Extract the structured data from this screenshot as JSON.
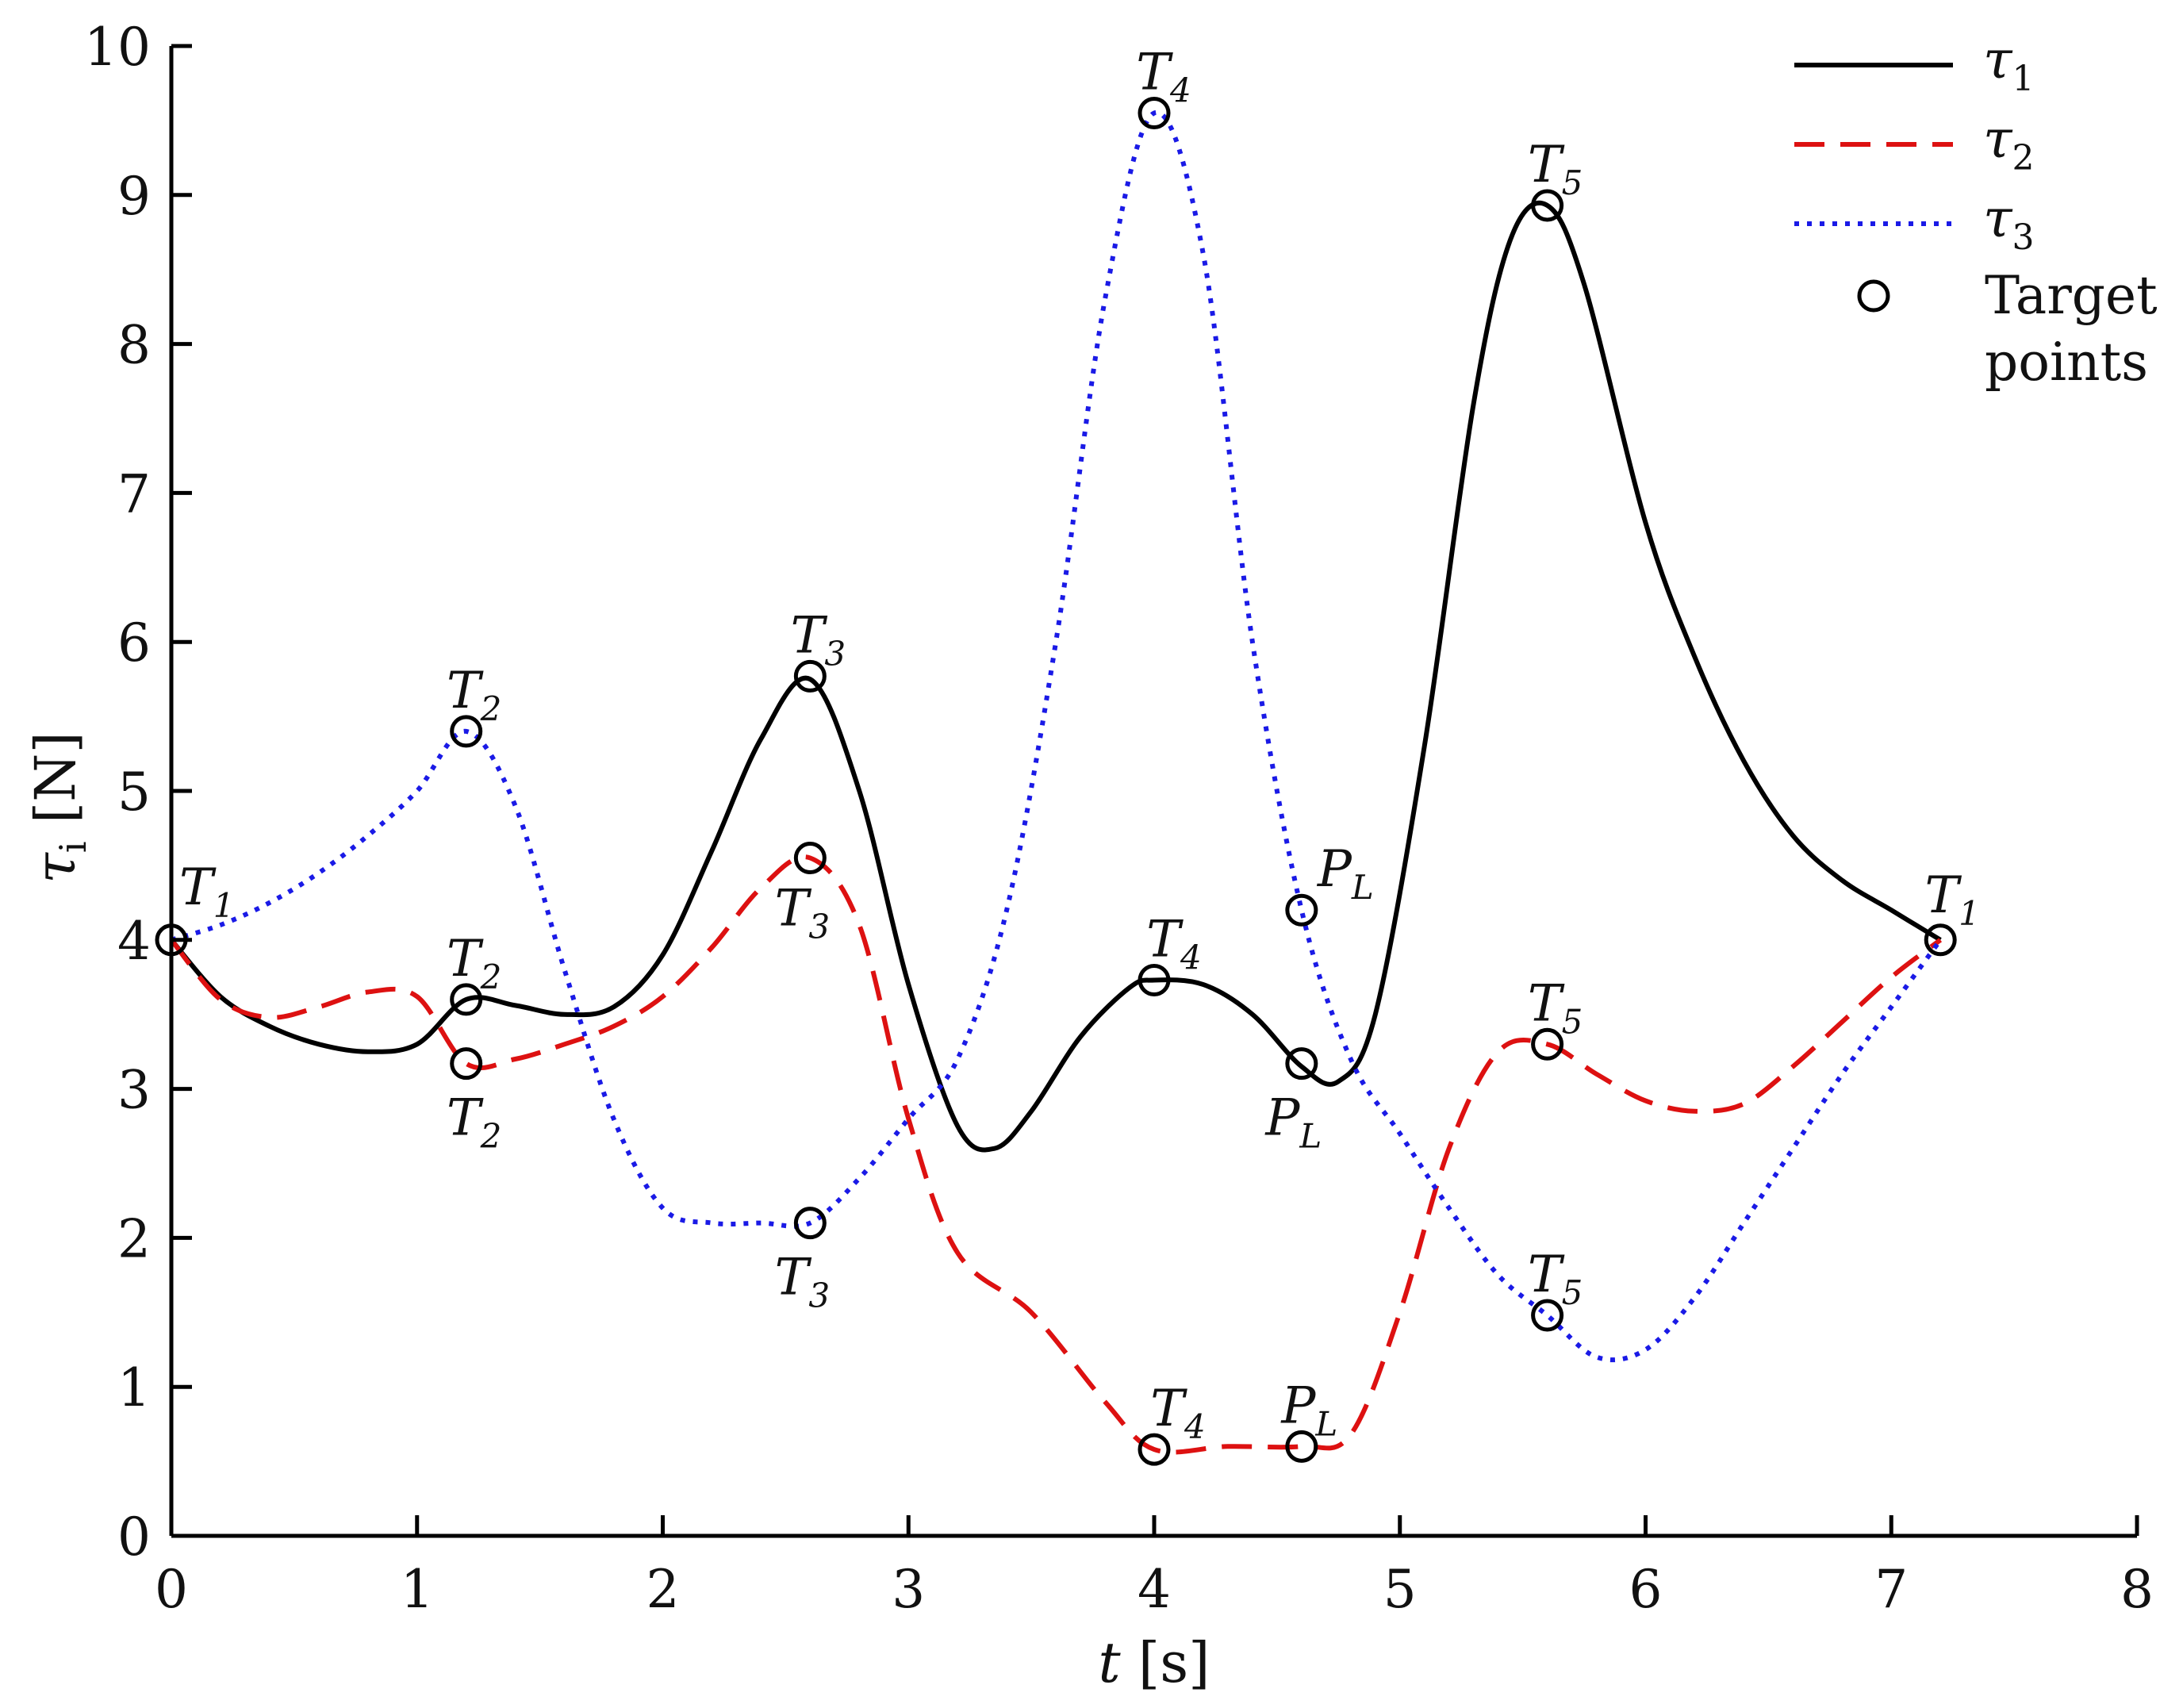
{
  "chart_data": {
    "type": "line",
    "xlabel": "t [s]",
    "xlabel_var": "t",
    "xlabel_unit": "[s]",
    "ylabel": "τi [N]",
    "ylabel_var": "τ",
    "ylabel_sub": "i",
    "ylabel_unit": "[N]",
    "xlim": [
      0,
      8
    ],
    "ylim": [
      0,
      10
    ],
    "xticks": [
      0,
      1,
      2,
      3,
      4,
      5,
      6,
      7,
      8
    ],
    "yticks": [
      0,
      1,
      2,
      3,
      4,
      5,
      6,
      7,
      8,
      9,
      10
    ],
    "grid": false,
    "legend_position": "top-right",
    "series": [
      {
        "name": "τ1",
        "name_main": "τ",
        "name_sub": "1",
        "color": "#000000",
        "style": "solid",
        "points": [
          [
            0,
            4.0
          ],
          [
            0.2,
            3.62
          ],
          [
            0.4,
            3.42
          ],
          [
            0.6,
            3.3
          ],
          [
            0.8,
            3.25
          ],
          [
            1.0,
            3.3
          ],
          [
            1.2,
            3.6
          ],
          [
            1.4,
            3.56
          ],
          [
            1.6,
            3.5
          ],
          [
            1.8,
            3.55
          ],
          [
            2.0,
            3.9
          ],
          [
            2.2,
            4.6
          ],
          [
            2.4,
            5.35
          ],
          [
            2.6,
            5.75
          ],
          [
            2.8,
            5.0
          ],
          [
            3.0,
            3.7
          ],
          [
            3.2,
            2.75
          ],
          [
            3.35,
            2.6
          ],
          [
            3.5,
            2.85
          ],
          [
            3.7,
            3.35
          ],
          [
            3.9,
            3.68
          ],
          [
            4.0,
            3.73
          ],
          [
            4.2,
            3.7
          ],
          [
            4.4,
            3.5
          ],
          [
            4.6,
            3.15
          ],
          [
            4.75,
            3.05
          ],
          [
            4.9,
            3.5
          ],
          [
            5.1,
            5.3
          ],
          [
            5.3,
            7.6
          ],
          [
            5.45,
            8.7
          ],
          [
            5.6,
            8.93
          ],
          [
            5.75,
            8.4
          ],
          [
            6.0,
            6.8
          ],
          [
            6.2,
            5.9
          ],
          [
            6.4,
            5.2
          ],
          [
            6.6,
            4.7
          ],
          [
            6.8,
            4.4
          ],
          [
            7.0,
            4.2
          ],
          [
            7.2,
            4.0
          ]
        ]
      },
      {
        "name": "τ2",
        "name_main": "τ",
        "name_sub": "2",
        "color": "#dd1111",
        "style": "dashed",
        "points": [
          [
            0,
            4.0
          ],
          [
            0.2,
            3.6
          ],
          [
            0.4,
            3.48
          ],
          [
            0.6,
            3.55
          ],
          [
            0.8,
            3.65
          ],
          [
            1.0,
            3.62
          ],
          [
            1.2,
            3.17
          ],
          [
            1.4,
            3.2
          ],
          [
            1.6,
            3.3
          ],
          [
            1.8,
            3.42
          ],
          [
            2.0,
            3.62
          ],
          [
            2.2,
            3.95
          ],
          [
            2.4,
            4.35
          ],
          [
            2.6,
            4.55
          ],
          [
            2.8,
            4.1
          ],
          [
            3.0,
            2.8
          ],
          [
            3.2,
            1.9
          ],
          [
            3.5,
            1.5
          ],
          [
            3.8,
            0.9
          ],
          [
            4.0,
            0.58
          ],
          [
            4.3,
            0.6
          ],
          [
            4.6,
            0.6
          ],
          [
            4.8,
            0.68
          ],
          [
            5.0,
            1.5
          ],
          [
            5.2,
            2.6
          ],
          [
            5.4,
            3.25
          ],
          [
            5.6,
            3.3
          ],
          [
            5.8,
            3.1
          ],
          [
            6.0,
            2.92
          ],
          [
            6.2,
            2.85
          ],
          [
            6.4,
            2.9
          ],
          [
            6.6,
            3.15
          ],
          [
            6.8,
            3.45
          ],
          [
            7.0,
            3.75
          ],
          [
            7.2,
            4.0
          ]
        ]
      },
      {
        "name": "τ3",
        "name_main": "τ",
        "name_sub": "3",
        "color": "#1a1ae6",
        "style": "dotted",
        "points": [
          [
            0,
            4.0
          ],
          [
            0.2,
            4.1
          ],
          [
            0.4,
            4.25
          ],
          [
            0.6,
            4.45
          ],
          [
            0.8,
            4.7
          ],
          [
            1.0,
            5.0
          ],
          [
            1.2,
            5.4
          ],
          [
            1.4,
            4.9
          ],
          [
            1.6,
            3.8
          ],
          [
            1.8,
            2.8
          ],
          [
            2.0,
            2.2
          ],
          [
            2.2,
            2.1
          ],
          [
            2.4,
            2.1
          ],
          [
            2.6,
            2.1
          ],
          [
            2.8,
            2.4
          ],
          [
            3.0,
            2.8
          ],
          [
            3.2,
            3.2
          ],
          [
            3.4,
            4.2
          ],
          [
            3.6,
            6.0
          ],
          [
            3.8,
            8.3
          ],
          [
            4.0,
            9.55
          ],
          [
            4.2,
            8.6
          ],
          [
            4.4,
            6.0
          ],
          [
            4.6,
            4.2
          ],
          [
            4.8,
            3.2
          ],
          [
            5.0,
            2.7
          ],
          [
            5.2,
            2.2
          ],
          [
            5.4,
            1.75
          ],
          [
            5.6,
            1.48
          ],
          [
            5.8,
            1.2
          ],
          [
            6.0,
            1.25
          ],
          [
            6.2,
            1.6
          ],
          [
            6.4,
            2.1
          ],
          [
            6.6,
            2.6
          ],
          [
            6.8,
            3.1
          ],
          [
            7.0,
            3.55
          ],
          [
            7.2,
            4.0
          ]
        ]
      }
    ],
    "target_points_label": "Target points",
    "target_points_label_lines": [
      "Target",
      "points"
    ],
    "target_points": [
      {
        "x": 0,
        "y": 4.0,
        "label_main": "T",
        "label_sub": "1"
      },
      {
        "x": 1.2,
        "y": 5.4,
        "label_main": "T",
        "label_sub": "2"
      },
      {
        "x": 1.2,
        "y": 3.6,
        "label_main": "T",
        "label_sub": "2"
      },
      {
        "x": 1.2,
        "y": 3.17,
        "label_main": "T",
        "label_sub": "2"
      },
      {
        "x": 2.6,
        "y": 5.77,
        "label_main": "T",
        "label_sub": "3"
      },
      {
        "x": 2.6,
        "y": 4.55,
        "label_main": "T",
        "label_sub": "3"
      },
      {
        "x": 2.6,
        "y": 2.1,
        "label_main": "T",
        "label_sub": "3"
      },
      {
        "x": 4.0,
        "y": 9.55,
        "label_main": "T",
        "label_sub": "4"
      },
      {
        "x": 4.0,
        "y": 3.73,
        "label_main": "T",
        "label_sub": "4"
      },
      {
        "x": 4.0,
        "y": 0.58,
        "label_main": "T",
        "label_sub": "4"
      },
      {
        "x": 4.6,
        "y": 4.2,
        "label_main": "P",
        "label_sub": "L"
      },
      {
        "x": 4.6,
        "y": 3.17,
        "label_main": "P",
        "label_sub": "L"
      },
      {
        "x": 4.6,
        "y": 0.6,
        "label_main": "P",
        "label_sub": "L"
      },
      {
        "x": 5.6,
        "y": 8.93,
        "label_main": "T",
        "label_sub": "5"
      },
      {
        "x": 5.6,
        "y": 3.3,
        "label_main": "T",
        "label_sub": "5"
      },
      {
        "x": 5.6,
        "y": 1.48,
        "label_main": "T",
        "label_sub": "5"
      },
      {
        "x": 7.2,
        "y": 4.0,
        "label_main": "T",
        "label_sub": "1"
      }
    ]
  }
}
